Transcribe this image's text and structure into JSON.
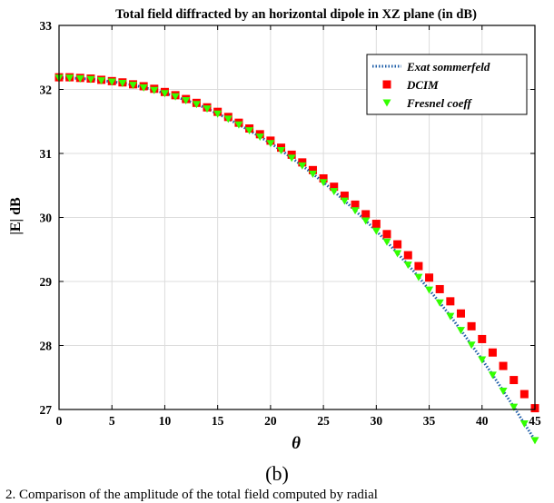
{
  "figure": {
    "caption": "(b)",
    "below_text": "2. Comparison of the amplitude of the total field computed by radial"
  },
  "chart_data": {
    "type": "line",
    "title": "Total field diffracted by an horizontal dipole in XZ plane (in dB)",
    "xlabel": "θ",
    "ylabel": "|E| dB",
    "xlim": [
      0,
      45
    ],
    "ylim": [
      27,
      33
    ],
    "xticks": [
      0,
      5,
      10,
      15,
      20,
      25,
      30,
      35,
      40,
      45
    ],
    "yticks": [
      27,
      28,
      29,
      30,
      31,
      32,
      33
    ],
    "grid": true,
    "legend_position": "top-right",
    "x": [
      0,
      1,
      2,
      3,
      4,
      5,
      6,
      7,
      8,
      9,
      10,
      11,
      12,
      13,
      14,
      15,
      16,
      17,
      18,
      19,
      20,
      21,
      22,
      23,
      24,
      25,
      26,
      27,
      28,
      29,
      30,
      31,
      32,
      33,
      34,
      35,
      36,
      37,
      38,
      39,
      40,
      41,
      42,
      43,
      44,
      45
    ],
    "series": [
      {
        "name": "Exat sommerfeld",
        "style": "dotted-line",
        "color": "#1f5fa8",
        "values": [
          32.18,
          32.18,
          32.17,
          32.16,
          32.14,
          32.12,
          32.1,
          32.07,
          32.03,
          31.99,
          31.94,
          31.89,
          31.83,
          31.77,
          31.7,
          31.62,
          31.54,
          31.45,
          31.36,
          31.26,
          31.16,
          31.05,
          30.93,
          30.81,
          30.68,
          30.55,
          30.41,
          30.26,
          30.11,
          29.95,
          29.79,
          29.62,
          29.44,
          29.26,
          29.07,
          28.87,
          28.67,
          28.46,
          28.24,
          28.01,
          27.78,
          27.54,
          27.29,
          27.04,
          26.78,
          26.52
        ]
      },
      {
        "name": "DCIM",
        "style": "square-marker",
        "color": "#ff0000",
        "values": [
          32.19,
          32.19,
          32.18,
          32.17,
          32.15,
          32.13,
          32.11,
          32.08,
          32.05,
          32.01,
          31.96,
          31.91,
          31.85,
          31.79,
          31.72,
          31.65,
          31.57,
          31.48,
          31.39,
          31.3,
          31.2,
          31.09,
          30.98,
          30.86,
          30.74,
          30.61,
          30.48,
          30.34,
          30.2,
          30.05,
          29.9,
          29.74,
          29.58,
          29.41,
          29.24,
          29.06,
          28.88,
          28.69,
          28.5,
          28.3,
          28.1,
          27.89,
          27.68,
          27.46,
          27.24,
          27.02
        ]
      },
      {
        "name": "Fresnel coeff",
        "style": "triangle-marker",
        "color": "#33ff00",
        "values": [
          32.18,
          32.18,
          32.17,
          32.16,
          32.14,
          32.12,
          32.1,
          32.07,
          32.03,
          31.99,
          31.94,
          31.89,
          31.83,
          31.77,
          31.7,
          31.62,
          31.54,
          31.45,
          31.36,
          31.26,
          31.16,
          31.05,
          30.93,
          30.81,
          30.68,
          30.55,
          30.41,
          30.26,
          30.11,
          29.95,
          29.79,
          29.62,
          29.44,
          29.26,
          29.07,
          28.87,
          28.67,
          28.46,
          28.24,
          28.01,
          27.78,
          27.54,
          27.29,
          27.04,
          26.78,
          26.52
        ]
      }
    ]
  }
}
